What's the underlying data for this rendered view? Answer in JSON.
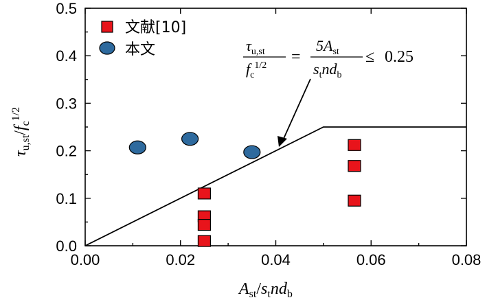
{
  "chart_data": {
    "type": "scatter",
    "xlim": [
      0.0,
      0.08
    ],
    "ylim": [
      0.0,
      0.5
    ],
    "xticks": [
      "0.00",
      "0.02",
      "0.04",
      "0.06",
      "0.08"
    ],
    "yticks": [
      "0.0",
      "0.1",
      "0.2",
      "0.3",
      "0.4",
      "0.5"
    ],
    "xlabel": "A_st/s_t n d_b",
    "ylabel": "τ_u,st/f_c^1/2",
    "grid": false,
    "legend_position": "top-left",
    "series": [
      {
        "name": "文献[10]",
        "marker": "square",
        "color": "#e8141b",
        "points": [
          {
            "x": 0.025,
            "y": 0.11
          },
          {
            "x": 0.025,
            "y": 0.062
          },
          {
            "x": 0.025,
            "y": 0.044
          },
          {
            "x": 0.025,
            "y": 0.01
          },
          {
            "x": 0.0565,
            "y": 0.212
          },
          {
            "x": 0.0565,
            "y": 0.168
          },
          {
            "x": 0.0565,
            "y": 0.095
          }
        ]
      },
      {
        "name": "本文",
        "marker": "circle",
        "color": "#2e6a9e",
        "points": [
          {
            "x": 0.011,
            "y": 0.207
          },
          {
            "x": 0.022,
            "y": 0.225
          },
          {
            "x": 0.035,
            "y": 0.197
          }
        ]
      }
    ],
    "limit_line": {
      "points": [
        {
          "x": 0.0,
          "y": 0.0
        },
        {
          "x": 0.05,
          "y": 0.25
        },
        {
          "x": 0.08,
          "y": 0.25
        }
      ],
      "color": "#000000"
    },
    "annotation": {
      "text": "τu,st/fc^1/2 = 5Ast/(st n db) ≤ 0.25",
      "lhs_num": "τ",
      "lhs_num_sub": "u,st",
      "lhs_den": "f",
      "lhs_den_sub": "c",
      "lhs_den_sup": "1/2",
      "eq": "=",
      "rhs_num": "5A",
      "rhs_num_sub": "st",
      "rhs_den_a": "s",
      "rhs_den_a_sub": "t",
      "rhs_den_b": "nd",
      "rhs_den_b_sub": "b",
      "rel": "≤",
      "limit": "0.25",
      "arrow_target": {
        "x": 0.04,
        "y": 0.2
      }
    },
    "axis_label_parts": {
      "x_main_a": "A",
      "x_sub_a": "st",
      "x_slash": "/",
      "x_main_b": "s",
      "x_sub_b": "t",
      "x_main_c": "nd",
      "x_sub_c": "b",
      "y_main_a": "τ",
      "y_sub_a": "u,st",
      "y_slash": "/",
      "y_main_b": "f",
      "y_sub_b": "c",
      "y_sup_b": "1/2"
    }
  }
}
